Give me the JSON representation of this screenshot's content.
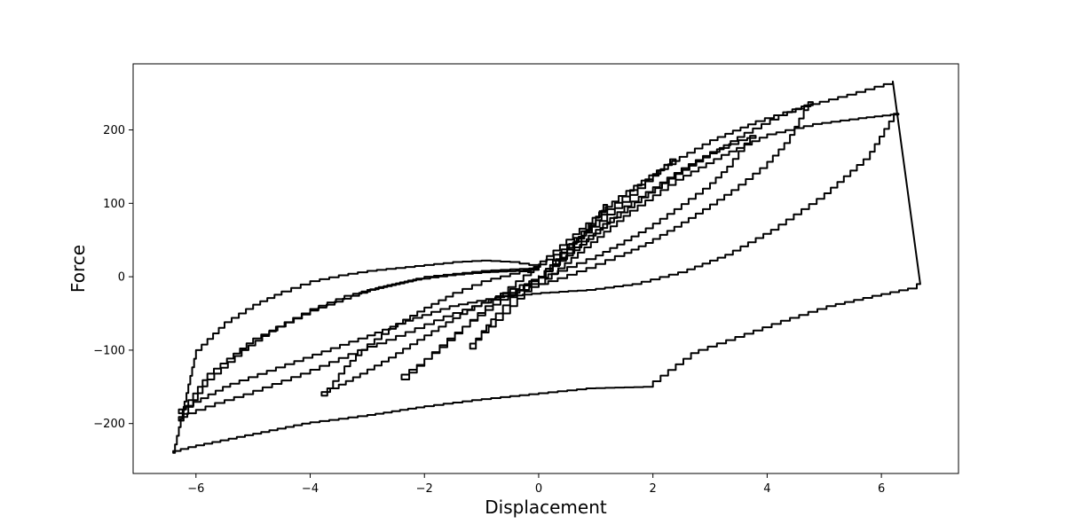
{
  "chart_data": {
    "type": "line",
    "title": "",
    "xlabel": "Displacement",
    "ylabel": "Force",
    "xlim": [
      -7.1,
      7.35
    ],
    "ylim": [
      -268,
      290
    ],
    "xticks": [
      -6,
      -4,
      -2,
      0,
      2,
      4,
      6
    ],
    "yticks": [
      -200,
      -100,
      0,
      100,
      200
    ],
    "xtick_labels": [
      "−6",
      "−4",
      "−2",
      "0",
      "2",
      "4",
      "6"
    ],
    "ytick_labels": [
      "−200",
      "−100",
      "0",
      "100",
      "200"
    ],
    "grid": false,
    "legend": "none",
    "line_color": "#000000",
    "series": [
      {
        "x": [
          0.0,
          0.25,
          0.5,
          0.75,
          1.0,
          1.2,
          1.0,
          0.75,
          0.5,
          0.25,
          0.0,
          -0.25,
          -0.5,
          -0.75,
          -1.0,
          -1.2,
          -1.0,
          -0.75,
          -0.5,
          -0.25,
          0.0
        ],
        "y": [
          0,
          22,
          44,
          62,
          82,
          98,
          72,
          48,
          26,
          8,
          -10,
          -30,
          -50,
          -68,
          -84,
          -98,
          -74,
          -50,
          -28,
          -10,
          2
        ]
      },
      {
        "x": [
          0.0,
          0.4,
          0.8,
          1.2,
          1.6,
          2.0,
          2.4,
          2.0,
          1.6,
          1.2,
          0.8,
          0.4,
          0.0,
          -0.4,
          -0.8,
          -1.2,
          -1.6,
          -2.0,
          -2.4,
          -2.0,
          -1.6,
          -1.2,
          -0.8,
          -0.4,
          0.0
        ],
        "y": [
          0,
          32,
          62,
          92,
          118,
          140,
          160,
          130,
          102,
          76,
          52,
          30,
          10,
          -14,
          -40,
          -68,
          -96,
          -120,
          -140,
          -112,
          -84,
          -60,
          -38,
          -18,
          0
        ]
      },
      {
        "x": [
          0.0,
          0.5,
          1.0,
          1.5,
          2.0,
          2.5,
          3.0,
          3.5,
          3.8,
          3.4,
          3.0,
          2.5,
          2.0,
          1.5,
          1.0,
          0.5,
          0.0,
          -0.5,
          -1.0,
          -1.5,
          -2.0,
          -2.5,
          -3.0,
          -3.5,
          -3.8,
          -3.4,
          -3.0,
          -2.5,
          -2.0,
          -1.5,
          -1.0,
          -0.5,
          0.0
        ],
        "y": [
          0,
          32,
          64,
          96,
          122,
          148,
          170,
          186,
          192,
          150,
          120,
          92,
          66,
          44,
          24,
          8,
          -6,
          -22,
          -40,
          -62,
          -86,
          -110,
          -132,
          -152,
          -162,
          -122,
          -92,
          -64,
          -42,
          -22,
          -6,
          4,
          14
        ]
      },
      {
        "x": [
          0.0,
          0.6,
          1.2,
          1.8,
          2.4,
          3.0,
          3.6,
          4.2,
          4.8,
          4.4,
          4.0,
          3.5,
          3.0,
          2.5,
          2.0,
          1.5,
          1.0,
          0.5,
          0.0,
          -0.5,
          -1.0,
          -1.5,
          -2.0,
          -2.5,
          -3.0,
          -3.5,
          -4.0,
          -4.5,
          -5.0,
          -5.5,
          -6.0,
          -6.3,
          -5.8,
          -5.2,
          -4.6,
          -4.0,
          -3.4,
          -2.8,
          -2.2,
          -1.6,
          -1.0,
          -0.4,
          0.0
        ],
        "y": [
          0,
          36,
          74,
          108,
          140,
          168,
          196,
          220,
          238,
          182,
          148,
          118,
          92,
          68,
          46,
          28,
          12,
          -2,
          -14,
          -26,
          -40,
          -54,
          -70,
          -86,
          -100,
          -116,
          -132,
          -146,
          -160,
          -172,
          -186,
          -196,
          -140,
          -100,
          -68,
          -44,
          -26,
          -14,
          -4,
          2,
          6,
          8,
          10
        ]
      },
      {
        "x": [
          0.0,
          0.8,
          1.6,
          2.4,
          3.2,
          4.0,
          4.8,
          5.6,
          6.3,
          5.8,
          5.0,
          4.2,
          3.4,
          2.6,
          1.8,
          1.0,
          0.2,
          -0.6,
          -1.4,
          -2.2,
          -3.0,
          -3.8,
          -4.6,
          -5.4,
          -6.3,
          -5.8,
          -5.0,
          -4.0,
          -3.0,
          -2.0,
          -1.0,
          0.0
        ],
        "y": [
          -10,
          40,
          90,
          132,
          166,
          194,
          208,
          216,
          222,
          160,
          106,
          64,
          30,
          6,
          -10,
          -18,
          -22,
          -28,
          -40,
          -60,
          -84,
          -106,
          -128,
          -150,
          -186,
          -132,
          -84,
          -46,
          -18,
          0,
          8,
          12
        ]
      },
      {
        "x": [
          -0.2,
          0.6,
          1.4,
          2.2,
          3.0,
          3.8,
          4.6,
          5.4,
          6.2,
          6.68,
          6.62,
          6.0,
          5.2,
          4.4,
          3.6,
          2.8,
          2.0,
          1.0,
          0.0,
          -1.0,
          -2.0,
          -3.0,
          -4.0,
          -5.0,
          -6.0,
          -6.4,
          -6.0,
          -5.5,
          -5.0,
          -4.5,
          -4.0,
          -3.5,
          -3.0,
          -2.5,
          -2.0,
          -1.5,
          -1.0,
          -0.5,
          0.0
        ],
        "y": [
          6,
          58,
          110,
          152,
          186,
          212,
          232,
          248,
          266,
          -10,
          -16,
          -26,
          -40,
          -60,
          -82,
          -104,
          -150,
          -152,
          -160,
          -168,
          -178,
          -190,
          -200,
          -216,
          -232,
          -240,
          -100,
          -62,
          -38,
          -20,
          -6,
          2,
          8,
          12,
          16,
          20,
          22,
          20,
          14
        ]
      }
    ]
  }
}
